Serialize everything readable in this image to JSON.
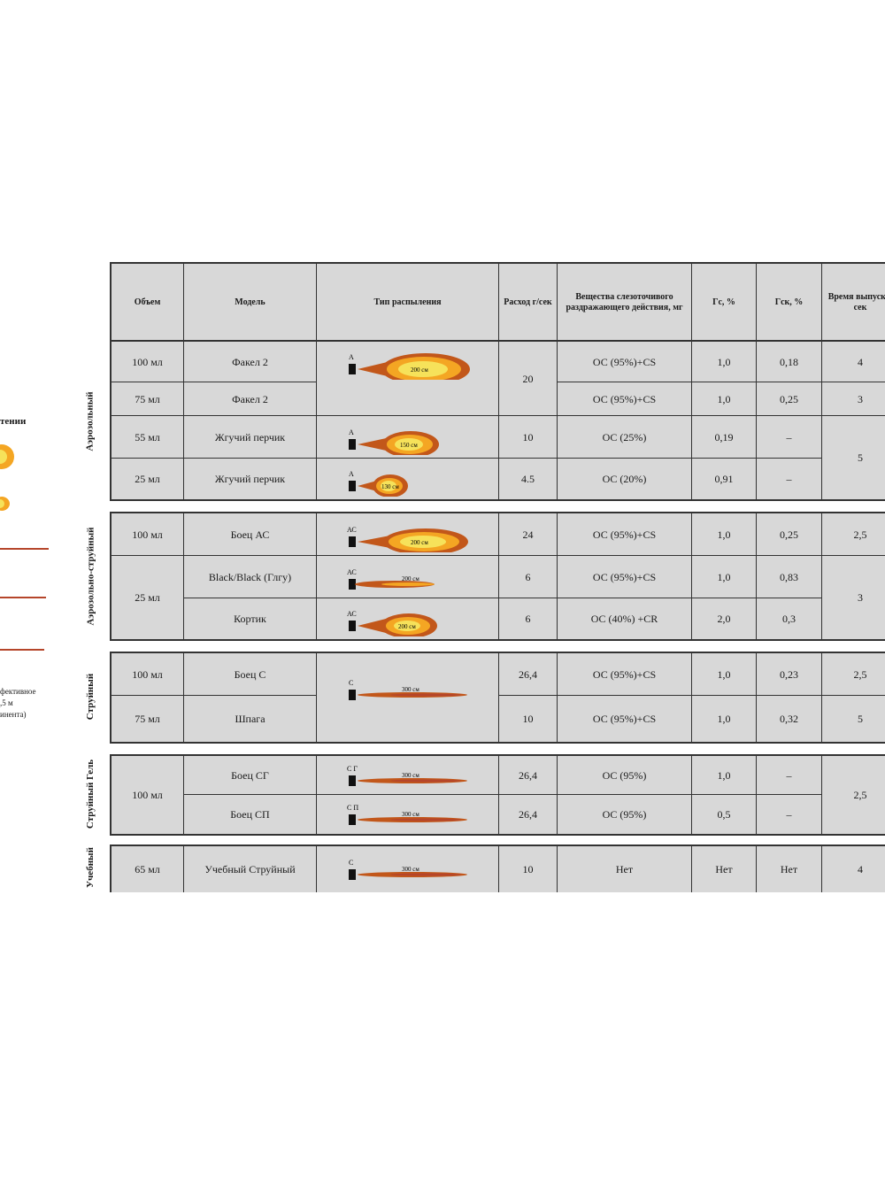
{
  "headers": {
    "volume": "Объем",
    "model": "Модель",
    "spray_type": "Тип распыления",
    "flow": "Расход г/сек",
    "substances": "Вещества слезоточивого раздражающего действия, мг",
    "pct1": "Гс, %",
    "pct2": "Гск, %",
    "time": "Время выпуска, сек"
  },
  "left_fragment": {
    "title": "тении",
    "lines": [
      "фективное",
      ",5 м",
      "инента)"
    ]
  },
  "groups": [
    {
      "label": "Аэрозольный",
      "rows": [
        {
          "volume": "100 мл",
          "model": "Факел 2",
          "spray_code": "А",
          "spray_text": "200 см",
          "spray_kind": "cloud",
          "flow": "20",
          "substance": "ОС (95%)+CS",
          "pct1": "1,0",
          "pct2": "0,18",
          "time": "4"
        },
        {
          "volume": "75 мл",
          "model": "Факел 2",
          "spray_code": "",
          "spray_text": "",
          "spray_kind": "",
          "flow": "",
          "substance": "ОС (95%)+CS",
          "pct1": "1,0",
          "pct2": "0,25",
          "time": "3"
        },
        {
          "volume": "55 мл",
          "model": "Жгучий перчик",
          "spray_code": "А",
          "spray_text": "150 см",
          "spray_kind": "cloud",
          "flow": "10",
          "substance": "ОС (25%)",
          "pct1": "0,19",
          "pct2": "–",
          "time": "5"
        },
        {
          "volume": "25 мл",
          "model": "Жгучий перчик",
          "spray_code": "А",
          "spray_text": "130 см",
          "spray_kind": "cloud-small",
          "flow": "4.5",
          "substance": "ОС (20%)",
          "pct1": "0,91",
          "pct2": "–",
          "time": ""
        }
      ]
    },
    {
      "label": "Аэрозольно-струйный",
      "rows": [
        {
          "volume": "100 мл",
          "model": "Боец АС",
          "spray_code": "АС",
          "spray_text": "200 см",
          "spray_kind": "cloud",
          "flow": "24",
          "substance": "ОС (95%)+CS",
          "pct1": "1,0",
          "pct2": "0,25",
          "time": "2,5"
        },
        {
          "volume": "25 мл",
          "model": "Black/Black (Глгу)",
          "spray_code": "АС",
          "spray_text": "200 см",
          "spray_kind": "jet",
          "flow": "6",
          "substance": "ОС (95%)+CS",
          "pct1": "1,0",
          "pct2": "0,83",
          "time": "3"
        },
        {
          "volume": "",
          "model": "Кортик",
          "spray_code": "АС",
          "spray_text": "200 см",
          "spray_kind": "cloud-mid",
          "flow": "6",
          "substance": "ОС (40%) +CR",
          "pct1": "2,0",
          "pct2": "0,3",
          "time": ""
        }
      ]
    },
    {
      "label": "Струйный",
      "rows": [
        {
          "volume": "100 мл",
          "model": "Боец С",
          "spray_code": "С",
          "spray_text": "300 см",
          "spray_kind": "jet-long",
          "flow": "26,4",
          "substance": "ОС (95%)+CS",
          "pct1": "1,0",
          "pct2": "0,23",
          "time": "2,5"
        },
        {
          "volume": "75 мл",
          "model": "Шпага",
          "spray_code": "",
          "spray_text": "",
          "spray_kind": "",
          "flow": "10",
          "substance": "ОС (95%)+CS",
          "pct1": "1,0",
          "pct2": "0,32",
          "time": "5"
        }
      ]
    },
    {
      "label": "Струйный Гель",
      "rows": [
        {
          "volume": "100 мл",
          "model": "Боец СГ",
          "spray_code": "С Г",
          "spray_text": "300 см",
          "spray_kind": "jet-long",
          "flow": "26,4",
          "substance": "ОС (95%)",
          "pct1": "1,0",
          "pct2": "–",
          "time": "2,5"
        },
        {
          "volume": "",
          "model": "Боец СП",
          "spray_code": "С П",
          "spray_text": "300 см",
          "spray_kind": "jet-long",
          "flow": "26,4",
          "substance": "ОС (95%)",
          "pct1": "0,5",
          "pct2": "–",
          "time": ""
        }
      ]
    },
    {
      "label": "Учебный",
      "rows": [
        {
          "volume": "65 мл",
          "model": "Учебный Струйный",
          "spray_code": "С",
          "spray_text": "300 см",
          "spray_kind": "jet-long",
          "flow": "10",
          "substance": "Нет",
          "pct1": "Нет",
          "pct2": "Нет",
          "time": "4"
        }
      ]
    }
  ],
  "colors": {
    "flame_core": "#f6e25a",
    "flame_mid": "#f4a623",
    "flame_edge": "#c2571a",
    "jet": "#b5452a",
    "cell_bg": "#d8d8d8",
    "border": "#333333"
  }
}
